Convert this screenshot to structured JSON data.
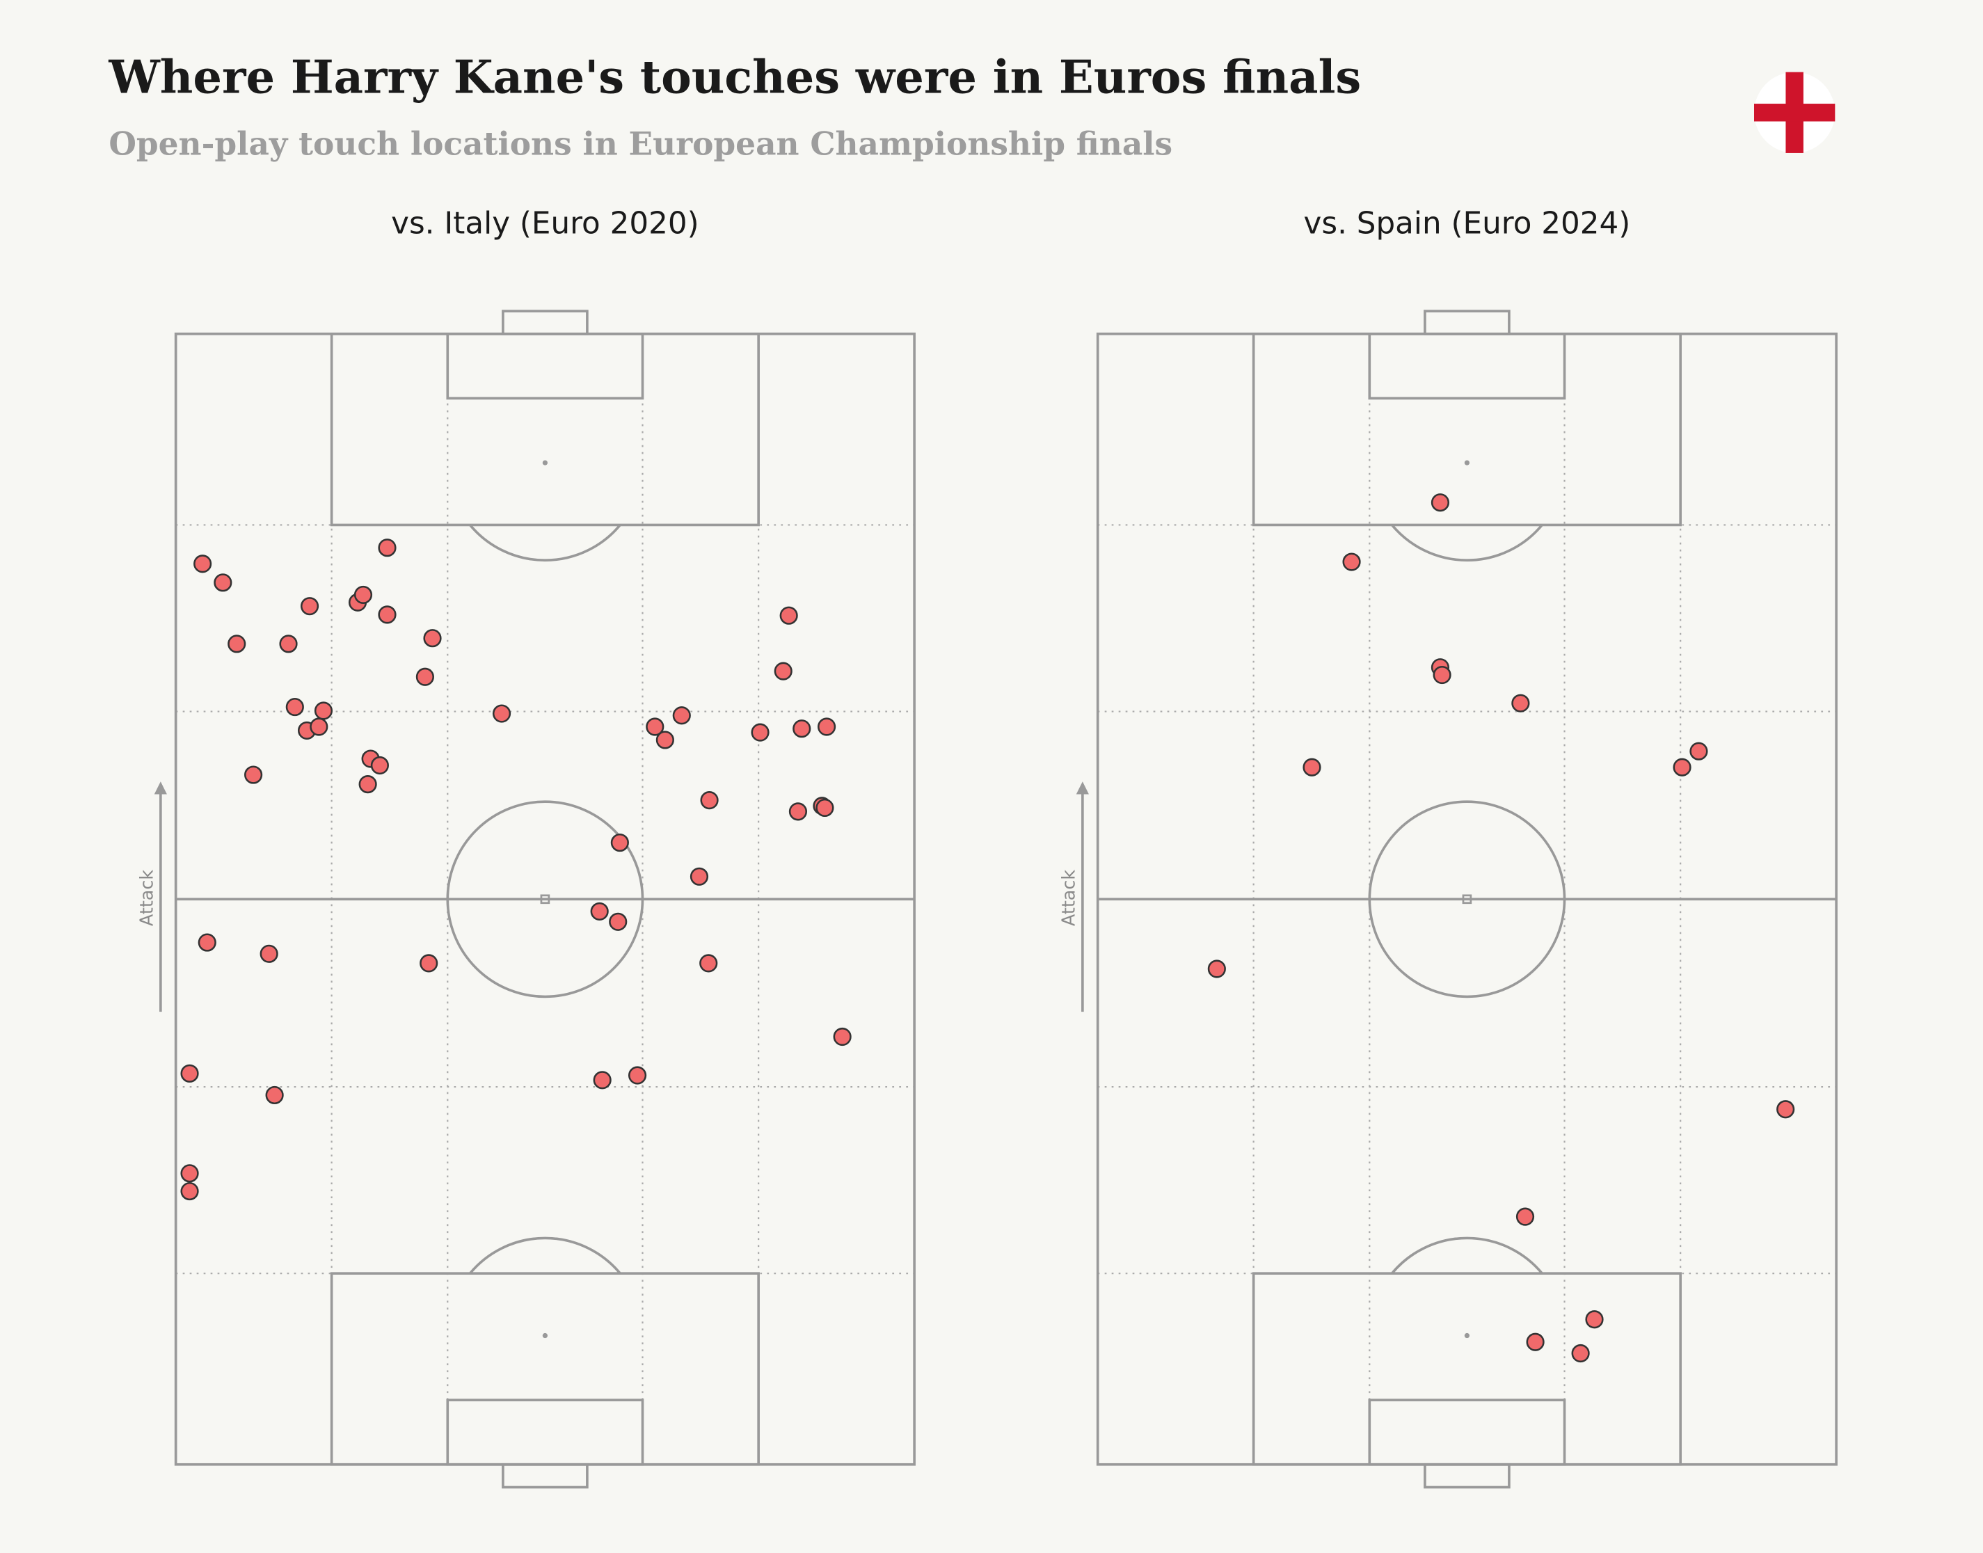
{
  "title": "Where Harry Kane's touches were in Euros finals",
  "subtitle": "Open-play touch locations in European Championship finals",
  "chart_data": [
    {
      "type": "scatter",
      "title": "vs. Italy (Euro 2020)",
      "attack_label": "Attack",
      "color": "#f06a6b",
      "xlim": [
        0,
        80
      ],
      "ylim": [
        0,
        120
      ],
      "x": [
        2.9,
        5.1,
        14.5,
        22.9,
        19.7,
        20.3,
        22.9,
        6.6,
        12.2,
        27.8,
        27.0,
        12.9,
        16.0,
        14.2,
        15.5,
        8.4,
        21.1,
        22.1,
        20.8,
        35.3,
        51.9,
        54.8,
        53.0,
        66.4,
        65.8,
        63.3,
        67.8,
        70.5,
        57.8,
        67.4,
        70.0,
        70.3,
        48.1,
        56.7,
        45.9,
        47.9,
        3.4,
        10.1,
        27.4,
        57.7,
        72.2,
        1.5,
        10.7,
        46.2,
        50.0,
        1.5,
        1.5
      ],
      "y": [
        95.6,
        93.6,
        91.1,
        97.3,
        91.5,
        92.3,
        90.2,
        87.1,
        87.1,
        87.7,
        83.6,
        80.4,
        80.0,
        77.9,
        78.3,
        73.2,
        74.9,
        74.2,
        72.2,
        79.7,
        78.3,
        79.5,
        76.9,
        90.1,
        84.2,
        77.7,
        78.1,
        78.3,
        70.5,
        69.3,
        69.9,
        69.7,
        66.0,
        62.4,
        58.7,
        57.6,
        55.4,
        54.2,
        53.2,
        53.2,
        45.4,
        41.5,
        39.2,
        40.8,
        41.3,
        30.9,
        29.0
      ]
    },
    {
      "type": "scatter",
      "title": "vs. Spain (Euro 2024)",
      "attack_label": "Attack",
      "color": "#f06a6b",
      "xlim": [
        0,
        80
      ],
      "ylim": [
        0,
        120
      ],
      "x": [
        37.1,
        27.5,
        37.1,
        37.3,
        45.8,
        23.2,
        63.3,
        65.1,
        12.9,
        74.5,
        46.3,
        53.8,
        47.4,
        52.3
      ],
      "y": [
        102.1,
        95.8,
        84.6,
        83.8,
        80.8,
        74.0,
        74.0,
        75.7,
        52.6,
        37.7,
        26.3,
        15.4,
        13.0,
        11.8
      ]
    }
  ]
}
